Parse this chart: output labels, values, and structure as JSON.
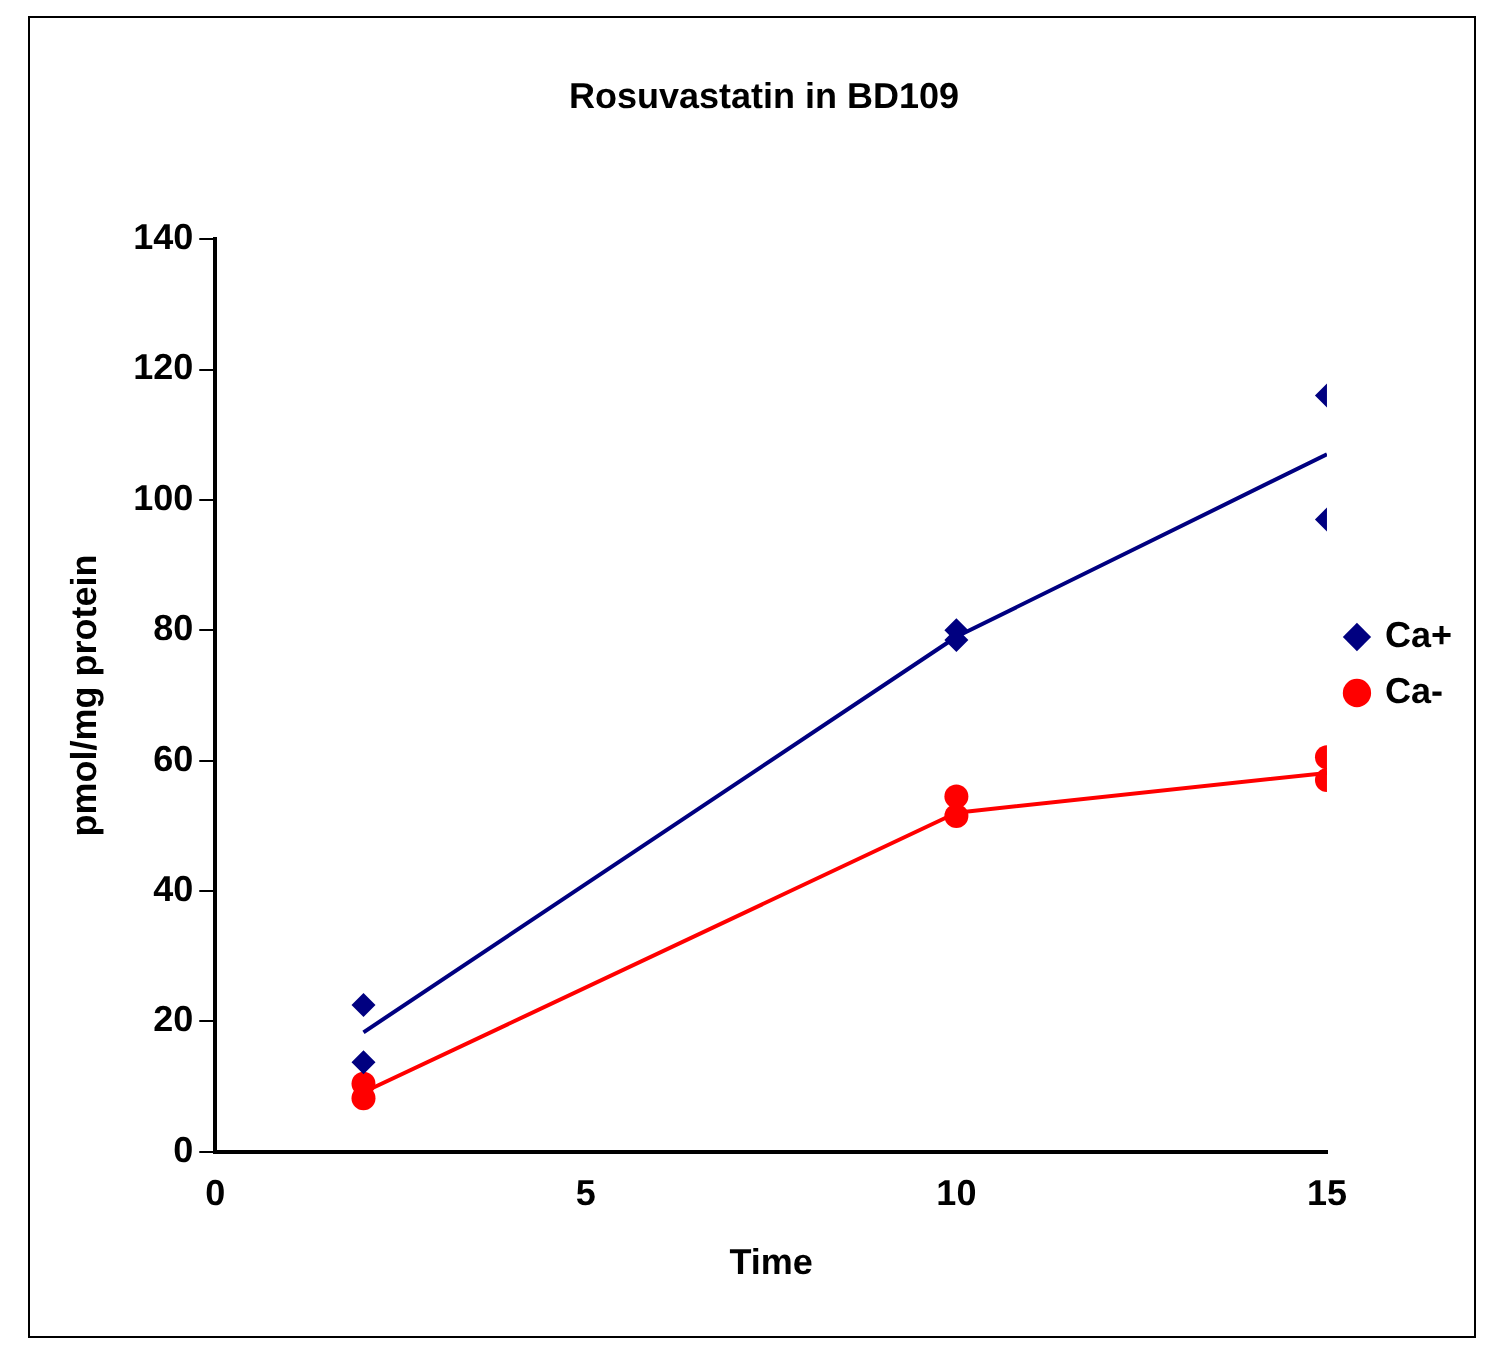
{
  "chart_data": {
    "type": "scatter",
    "title": "Rosuvastatin in BD109",
    "xlabel": "Time",
    "ylabel": "pmol/mg protein",
    "xlim": [
      0,
      15
    ],
    "xticks": [
      0,
      5,
      10,
      15
    ],
    "ylim": [
      0,
      140
    ],
    "yticks": [
      0,
      20,
      40,
      60,
      80,
      100,
      120,
      140
    ],
    "grid": false,
    "legend": "right",
    "series": [
      {
        "name": "Ca+",
        "color": "#000080",
        "marker": "diamond",
        "x": [
          2,
          2,
          10,
          10,
          15,
          15
        ],
        "values": [
          22.5,
          13.7,
          80,
          78.5,
          116,
          97
        ]
      },
      {
        "name": "Ca-",
        "color": "#ff0000",
        "marker": "circle",
        "x": [
          2,
          2,
          10,
          10,
          15,
          15
        ],
        "values": [
          10.4,
          8.2,
          54.5,
          51.5,
          60.5,
          57
        ]
      },
      {
        "type": "line",
        "color": "#000080",
        "marker": "none",
        "x": [
          2,
          10,
          15
        ],
        "values": [
          18.3,
          79,
          107
        ]
      },
      {
        "type": "line",
        "color": "#ff0000",
        "marker": "none",
        "x": [
          2,
          10,
          15
        ],
        "values": [
          9.1,
          52,
          58.1
        ]
      }
    ]
  }
}
